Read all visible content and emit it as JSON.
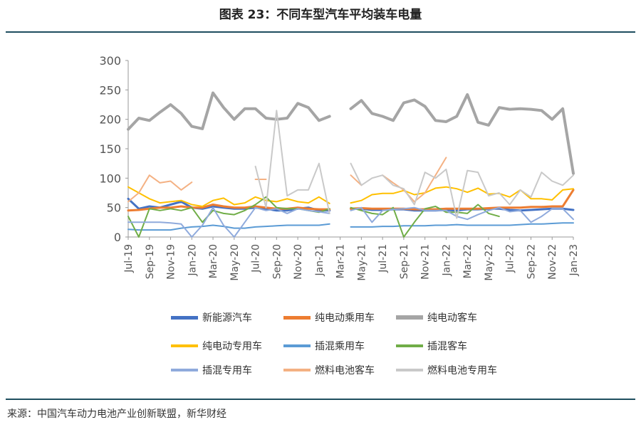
{
  "figure": {
    "title": "图表 23：不同车型汽车平均装车电量",
    "source": "来源：中国汽车动力电池产业创新联盟，新华财经"
  },
  "chart_data": {
    "type": "line",
    "title": "图表 23：不同车型汽车平均装车电量",
    "xlabel": "",
    "ylabel": "",
    "ylim": [
      0,
      300
    ],
    "yticks": [
      0,
      50,
      100,
      150,
      200,
      250,
      300
    ],
    "grid": false,
    "legend_position": "bottom",
    "x": [
      "Jul-19",
      "Aug-19",
      "Sep-19",
      "Oct-19",
      "Nov-19",
      "Dec-19",
      "Jan-20",
      "Feb-20",
      "Mar-20",
      "Apr-20",
      "May-20",
      "Jun-20",
      "Jul-20",
      "Aug-20",
      "Sep-20",
      "Oct-20",
      "Nov-20",
      "Dec-20",
      "Jan-21",
      "Feb-21",
      "Mar-21",
      "Apr-21",
      "May-21",
      "Jun-21",
      "Jul-21",
      "Aug-21",
      "Sep-21",
      "Oct-21",
      "Nov-21",
      "Dec-21",
      "Jan-22",
      "Feb-22",
      "Mar-22",
      "Apr-22",
      "May-22",
      "Jun-22",
      "Jul-22",
      "Aug-22",
      "Sep-22",
      "Oct-22",
      "Nov-22",
      "Dec-22",
      "Jan-23"
    ],
    "x_tick_labels": [
      "Jul-19",
      "Sep-19",
      "Nov-19",
      "Jan-20",
      "Mar-20",
      "May-20",
      "Jul-20",
      "Sep-20",
      "Nov-20",
      "Jan-21",
      "Mar-21",
      "May-21",
      "Jul-21",
      "Sep-21",
      "Nov-21",
      "Jan-22",
      "Mar-22",
      "May-22",
      "Jul-22",
      "Sep-22",
      "Nov-22",
      "Jan-23"
    ],
    "series": [
      {
        "name": "新能源汽车",
        "color": "#4472c4",
        "width": 3,
        "values": [
          65,
          48,
          52,
          50,
          55,
          60,
          50,
          48,
          52,
          50,
          48,
          48,
          50,
          48,
          45,
          45,
          48,
          50,
          45,
          45,
          null,
          48,
          48,
          46,
          46,
          47,
          47,
          45,
          45,
          45,
          46,
          45,
          47,
          47,
          48,
          48,
          46,
          45,
          46,
          47,
          48,
          48,
          46
        ]
      },
      {
        "name": "纯电动乘用车",
        "color": "#ed7d31",
        "width": 3,
        "values": [
          45,
          46,
          48,
          50,
          50,
          52,
          50,
          50,
          55,
          52,
          50,
          50,
          52,
          50,
          48,
          48,
          50,
          48,
          47,
          47,
          null,
          48,
          49,
          48,
          48,
          48,
          48,
          47,
          47,
          47,
          48,
          48,
          48,
          48,
          49,
          50,
          50,
          50,
          51,
          51,
          52,
          52,
          80
        ]
      },
      {
        "name": "纯电动客车",
        "color": "#a5a5a5",
        "width": 4,
        "values": [
          183,
          202,
          198,
          212,
          225,
          210,
          188,
          184,
          245,
          220,
          200,
          218,
          218,
          202,
          200,
          202,
          227,
          220,
          198,
          205,
          null,
          218,
          232,
          210,
          205,
          198,
          228,
          233,
          222,
          198,
          196,
          205,
          242,
          195,
          190,
          220,
          217,
          218,
          217,
          215,
          200,
          218,
          108
        ]
      },
      {
        "name": "纯电动专用车",
        "color": "#ffc000",
        "width": 2,
        "values": [
          85,
          75,
          65,
          58,
          60,
          62,
          55,
          52,
          62,
          66,
          55,
          58,
          68,
          62,
          60,
          65,
          60,
          58,
          68,
          57,
          null,
          58,
          62,
          72,
          74,
          74,
          79,
          72,
          75,
          83,
          85,
          82,
          76,
          83,
          73,
          74,
          68,
          80,
          65,
          65,
          63,
          80,
          82
        ]
      },
      {
        "name": "插混乘用车",
        "color": "#5b9bd5",
        "width": 2,
        "values": [
          13,
          12,
          12,
          12,
          12,
          15,
          17,
          18,
          20,
          18,
          15,
          15,
          17,
          18,
          19,
          20,
          20,
          20,
          20,
          22,
          null,
          17,
          17,
          17,
          18,
          18,
          19,
          19,
          19,
          20,
          20,
          21,
          20,
          20,
          20,
          20,
          20,
          21,
          22,
          22,
          23,
          24,
          24
        ]
      },
      {
        "name": "插混客车",
        "color": "#70ad47",
        "width": 2,
        "values": [
          35,
          0,
          48,
          45,
          48,
          45,
          50,
          25,
          45,
          40,
          38,
          45,
          55,
          68,
          50,
          48,
          48,
          45,
          42,
          48,
          null,
          50,
          45,
          40,
          38,
          50,
          0,
          25,
          48,
          52,
          42,
          42,
          40,
          55,
          40,
          35,
          null,
          null,
          null,
          null,
          null,
          null,
          null
        ]
      },
      {
        "name": "插混专用车",
        "color": "#8faadc",
        "width": 2,
        "values": [
          25,
          25,
          25,
          25,
          24,
          22,
          0,
          20,
          50,
          20,
          0,
          25,
          50,
          45,
          48,
          40,
          48,
          45,
          43,
          40,
          null,
          45,
          50,
          25,
          45,
          47,
          48,
          50,
          45,
          45,
          45,
          35,
          30,
          38,
          45,
          50,
          43,
          45,
          25,
          35,
          48,
          48,
          30
        ]
      },
      {
        "name": "燃料电池客车",
        "color": "#f4b183",
        "width": 2,
        "values": [
          60,
          75,
          105,
          92,
          95,
          80,
          93,
          null,
          null,
          null,
          null,
          null,
          98,
          98,
          null,
          null,
          null,
          null,
          null,
          null,
          null,
          105,
          88,
          null,
          105,
          92,
          80,
          60,
          75,
          105,
          135,
          null,
          null,
          null,
          null,
          null,
          null,
          null,
          null,
          null,
          null,
          null,
          null
        ]
      },
      {
        "name": "燃料电池专用车",
        "color": "#c9c9c9",
        "width": 2,
        "values": [
          null,
          null,
          null,
          null,
          null,
          null,
          null,
          null,
          null,
          null,
          null,
          null,
          120,
          50,
          215,
          70,
          80,
          80,
          125,
          40,
          null,
          125,
          88,
          100,
          105,
          88,
          82,
          55,
          110,
          100,
          115,
          32,
          113,
          110,
          70,
          75,
          55,
          80,
          68,
          110,
          95,
          88,
          105
        ]
      }
    ]
  },
  "legend_rows": [
    [
      "新能源汽车",
      "纯电动乘用车",
      "纯电动客车"
    ],
    [
      "纯电动专用车",
      "插混乘用车",
      "插混客车"
    ],
    [
      "插混专用车",
      "燃料电池客车",
      "燃料电池专用车"
    ]
  ]
}
